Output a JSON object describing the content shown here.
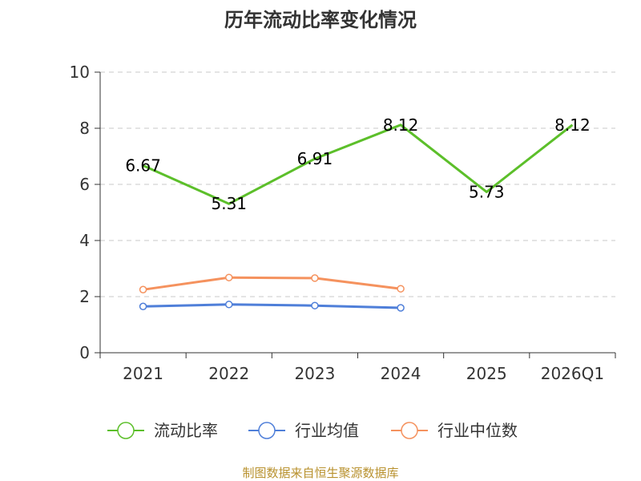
{
  "chart_data": {
    "type": "line",
    "title": "历年流动比率变化情况",
    "categories": [
      "2021",
      "2022",
      "2023",
      "2024",
      "2025",
      "2026Q1"
    ],
    "ylim": [
      0,
      10
    ],
    "yticks": [
      0,
      2,
      4,
      6,
      8,
      10
    ],
    "grid": true,
    "legend_position": "bottom",
    "series": [
      {
        "name": "流动比率",
        "color": "#5cbf2a",
        "values": [
          6.67,
          5.31,
          6.91,
          8.12,
          5.73,
          8.12
        ],
        "labels": [
          "6.67",
          "5.31",
          "6.91",
          "8.12",
          "5.73",
          "8.12"
        ],
        "show_markers": false
      },
      {
        "name": "行业均值",
        "color": "#4f7fd9",
        "values": [
          1.65,
          1.72,
          1.68,
          1.6,
          null,
          null
        ],
        "show_markers": true
      },
      {
        "name": "行业中位数",
        "color": "#f5925e",
        "values": [
          2.25,
          2.68,
          2.66,
          2.28,
          null,
          null
        ],
        "show_markers": true
      }
    ]
  },
  "source": "制图数据来自恒生聚源数据库"
}
